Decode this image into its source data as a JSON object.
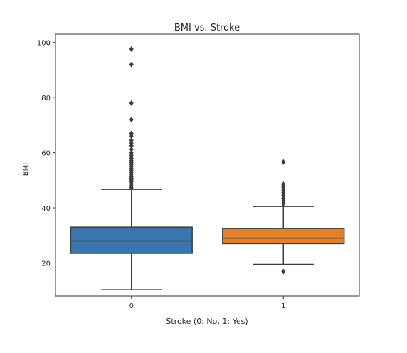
{
  "chart_data": {
    "type": "box",
    "title": "BMI vs. Stroke",
    "xlabel": "Stroke (0: No, 1: Yes)",
    "ylabel": "BMI",
    "ylim": [
      8,
      103
    ],
    "yticks": [
      20,
      40,
      60,
      80,
      100
    ],
    "grid": false,
    "categories": [
      "0",
      "1"
    ],
    "boxes": [
      {
        "category": "0",
        "color": "#3a75ad",
        "whisker_low": 10.3,
        "q1": 23.5,
        "median": 28.0,
        "q3": 33.0,
        "whisker_high": 46.7,
        "outliers": [
          47.3,
          48.0,
          48.7,
          49.4,
          50.1,
          50.8,
          51.5,
          52.2,
          52.9,
          53.6,
          54.3,
          55.0,
          55.7,
          56.4,
          57.1,
          58.0,
          59.0,
          60.0,
          61.2,
          62.5,
          63.5,
          64.5,
          66.0,
          67.0,
          72.0,
          78.0,
          92.0,
          97.6
        ]
      },
      {
        "category": "1",
        "color": "#e1812c",
        "whisker_low": 19.5,
        "q1": 27.0,
        "median": 29.0,
        "q3": 32.5,
        "whisker_high": 40.5,
        "outliers": [
          16.9,
          41.5,
          42.5,
          43.5,
          44.5,
          45.5,
          46.5,
          47.5,
          48.5,
          56.6
        ]
      }
    ]
  }
}
